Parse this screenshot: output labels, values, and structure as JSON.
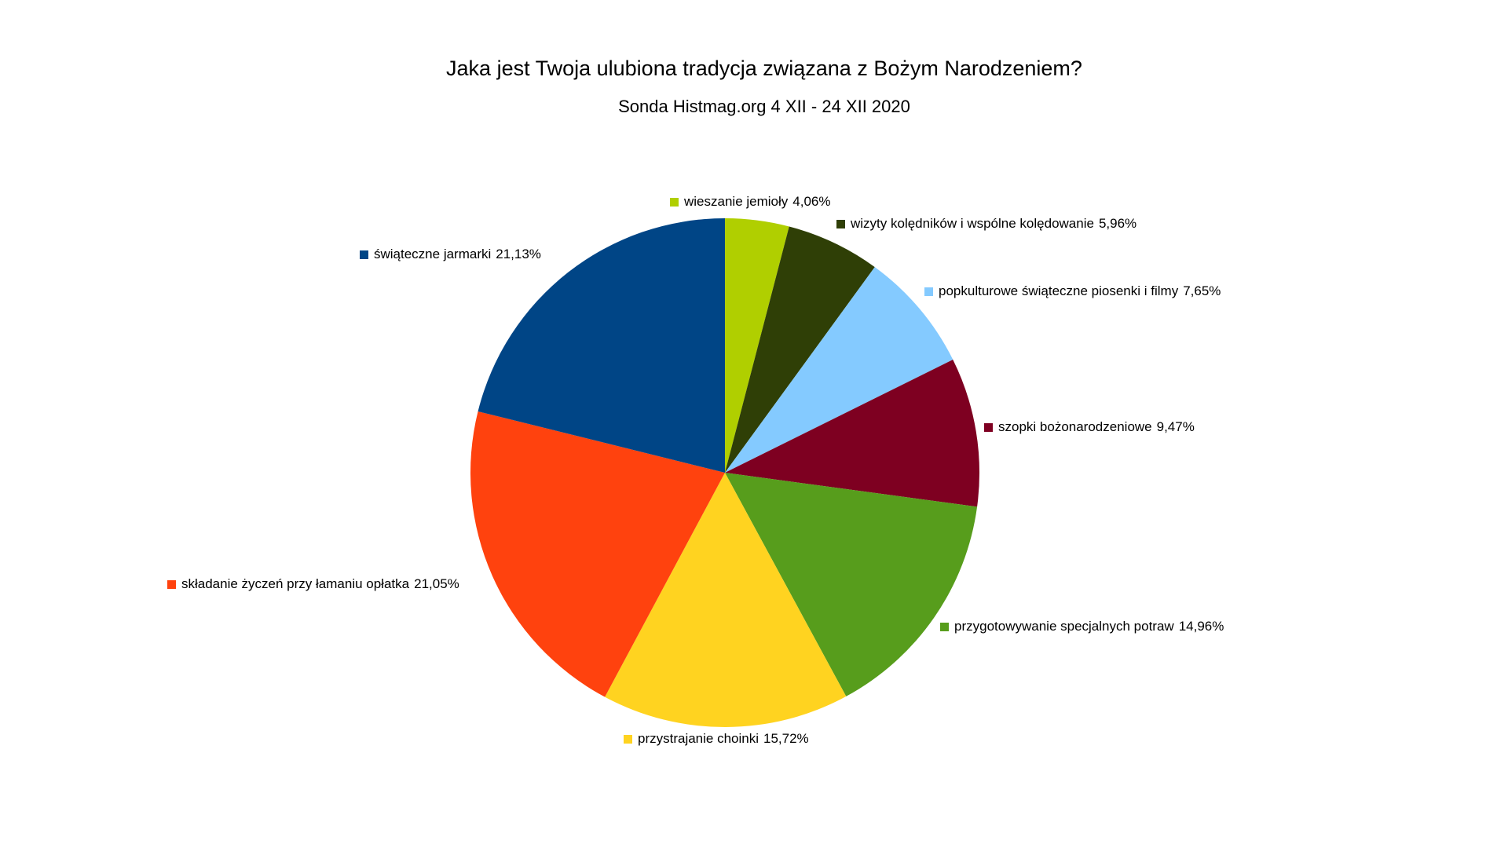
{
  "chart_data": {
    "type": "pie",
    "title": "Jaka jest Twoja ulubiona tradycja związana z Bożym Narodzeniem?",
    "subtitle": "Sonda Histmag.org 4 XII - 24 XII 2020",
    "categories": [
      "wieszanie jemioły",
      "wizyty kolędników i wspólne kolędowanie",
      "popkulturowe świąteczne piosenki i filmy",
      "szopki bożonarodzeniowe",
      "przygotowywanie specjalnych potraw",
      "przystrajanie choinki",
      "składanie życzeń przy łamaniu opłatka",
      "świąteczne jarmarki"
    ],
    "values": [
      4.06,
      5.96,
      7.65,
      9.47,
      14.96,
      15.72,
      21.05,
      21.13
    ],
    "value_labels": [
      "4,06%",
      "5,96%",
      "7,65%",
      "9,47%",
      "14,96%",
      "15,72%",
      "21,05%",
      "21,13%"
    ],
    "colors": [
      "#b0cf00",
      "#2f3f06",
      "#84caff",
      "#7e0021",
      "#579d1c",
      "#ffd320",
      "#ff420e",
      "#004586"
    ]
  }
}
